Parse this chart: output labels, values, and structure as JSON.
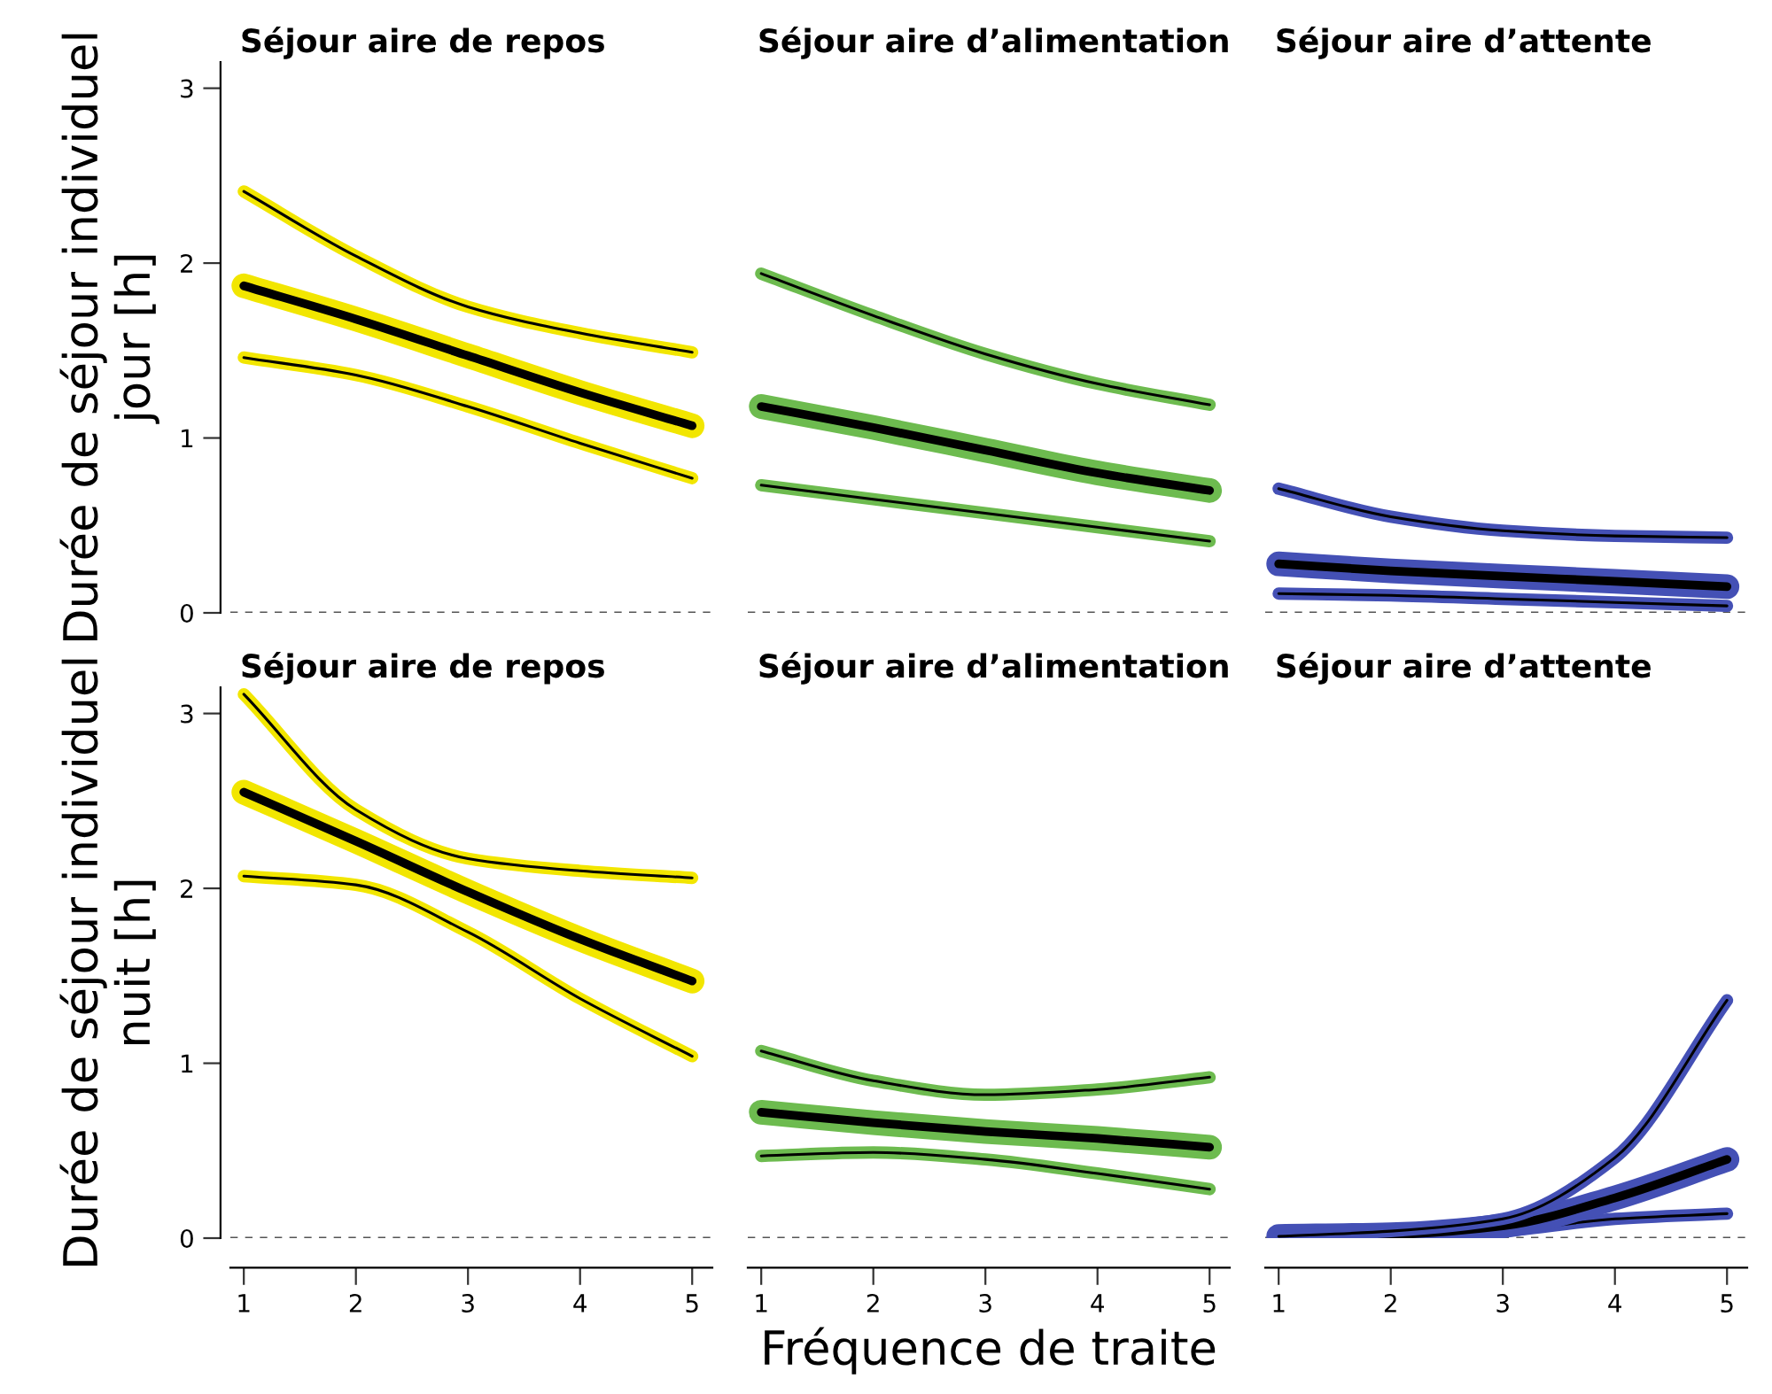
{
  "chart_data": [
    {
      "type": "line",
      "title": "Séjour aire de repos",
      "ylabel": "Durée de séjour individuel\njour [h]",
      "x": [
        1,
        2,
        3,
        4,
        5
      ],
      "ylim": [
        0,
        3.15
      ],
      "yticks": [
        0,
        1,
        2,
        3
      ],
      "tick_labels": "y",
      "series": [
        {
          "color": "#f2e600",
          "values": [
            1.46,
            1.36,
            1.18,
            0.97,
            0.77
          ]
        },
        {
          "color": "#f2e600",
          "values": [
            1.87,
            1.68,
            1.47,
            1.26,
            1.07
          ]
        },
        {
          "color": "#f2e600",
          "values": [
            2.41,
            2.04,
            1.75,
            1.6,
            1.49
          ]
        }
      ],
      "ref_lines": [
        {
          "axis": "y",
          "value": 0,
          "color": "#555555",
          "line_style": "dashed"
        }
      ]
    },
    {
      "type": "line",
      "title": "Séjour aire d’alimentation",
      "x": [
        1,
        2,
        3,
        4,
        5
      ],
      "ylim": [
        0,
        3
      ],
      "yticks": [
        0,
        1,
        2,
        3
      ],
      "tick_labels": false,
      "series": [
        {
          "color": "#6dbb4f",
          "values": [
            0.73,
            0.65,
            0.57,
            0.49,
            0.41
          ]
        },
        {
          "color": "#6dbb4f",
          "values": [
            1.18,
            1.06,
            0.93,
            0.8,
            0.7
          ]
        },
        {
          "color": "#6dbb4f",
          "values": [
            1.94,
            1.7,
            1.48,
            1.31,
            1.19
          ]
        }
      ],
      "ref_lines": [
        {
          "axis": "y",
          "value": 0,
          "color": "#555555",
          "line_style": "dashed"
        }
      ]
    },
    {
      "type": "line",
      "title": "Séjour aire d’attente",
      "x": [
        1,
        2,
        3,
        4,
        5
      ],
      "ylim": [
        0,
        3
      ],
      "yticks": [
        0,
        1,
        2,
        3
      ],
      "tick_labels": false,
      "series": [
        {
          "color": "#4450b5",
          "values": [
            0.11,
            0.1,
            0.08,
            0.06,
            0.04
          ]
        },
        {
          "color": "#4450b5",
          "values": [
            0.28,
            0.24,
            0.21,
            0.18,
            0.15
          ]
        },
        {
          "color": "#4450b5",
          "values": [
            0.71,
            0.55,
            0.47,
            0.44,
            0.43
          ]
        }
      ],
      "ref_lines": [
        {
          "axis": "y",
          "value": 0,
          "color": "#555555",
          "line_style": "dashed"
        }
      ]
    },
    {
      "type": "line",
      "title": "Séjour aire de repos",
      "ylabel": "Durée de séjour individuel\nnuit [h]",
      "x": [
        1,
        2,
        3,
        4,
        5
      ],
      "xlim": [
        0.88,
        5.18
      ],
      "xticks": [
        1,
        2,
        3,
        4,
        5
      ],
      "ylim": [
        0,
        3.15
      ],
      "yticks": [
        0,
        1,
        2,
        3
      ],
      "series": [
        {
          "color": "#f2e600",
          "values": [
            2.07,
            2.02,
            1.75,
            1.37,
            1.04
          ]
        },
        {
          "color": "#f2e600",
          "values": [
            2.55,
            2.27,
            1.98,
            1.71,
            1.47
          ]
        },
        {
          "color": "#f2e600",
          "values": [
            3.11,
            2.45,
            2.17,
            2.1,
            2.06
          ]
        }
      ],
      "ref_lines": [
        {
          "axis": "y",
          "value": 0,
          "color": "#555555",
          "line_style": "dashed"
        }
      ]
    },
    {
      "type": "line",
      "title": "Séjour aire d’alimentation",
      "xlabel": "Fréquence de traite",
      "x": [
        1,
        2,
        3,
        4,
        5
      ],
      "xlim": [
        0.88,
        5.18
      ],
      "xticks": [
        1,
        2,
        3,
        4,
        5
      ],
      "ylim": [
        0,
        3
      ],
      "yticks": [
        0,
        1,
        2,
        3
      ],
      "tick_labels": "x",
      "series": [
        {
          "color": "#6dbb4f",
          "values": [
            0.47,
            0.49,
            0.45,
            0.37,
            0.28
          ]
        },
        {
          "color": "#6dbb4f",
          "values": [
            0.72,
            0.66,
            0.61,
            0.57,
            0.52
          ]
        },
        {
          "color": "#6dbb4f",
          "values": [
            1.07,
            0.9,
            0.82,
            0.85,
            0.92
          ]
        }
      ],
      "ref_lines": [
        {
          "axis": "y",
          "value": 0,
          "color": "#555555",
          "line_style": "dashed"
        }
      ]
    },
    {
      "type": "line",
      "title": "Séjour aire d’attente",
      "x": [
        1,
        2,
        3,
        4,
        5
      ],
      "xlim": [
        0.88,
        5.18
      ],
      "xticks": [
        1,
        2,
        3,
        4,
        5
      ],
      "ylim": [
        0,
        3
      ],
      "yticks": [
        0,
        1,
        2,
        3
      ],
      "tick_labels": "x",
      "series": [
        {
          "color": "#4450b5",
          "values": [
            0.0,
            0.01,
            0.04,
            0.11,
            0.14
          ]
        },
        {
          "color": "#4450b5",
          "values": [
            0.01,
            0.02,
            0.07,
            0.23,
            0.45
          ]
        },
        {
          "color": "#4450b5",
          "values": [
            0.01,
            0.04,
            0.11,
            0.46,
            1.36
          ]
        }
      ],
      "ref_lines": [
        {
          "axis": "y",
          "value": 0,
          "color": "#555555",
          "line_style": "dashed"
        }
      ]
    }
  ]
}
